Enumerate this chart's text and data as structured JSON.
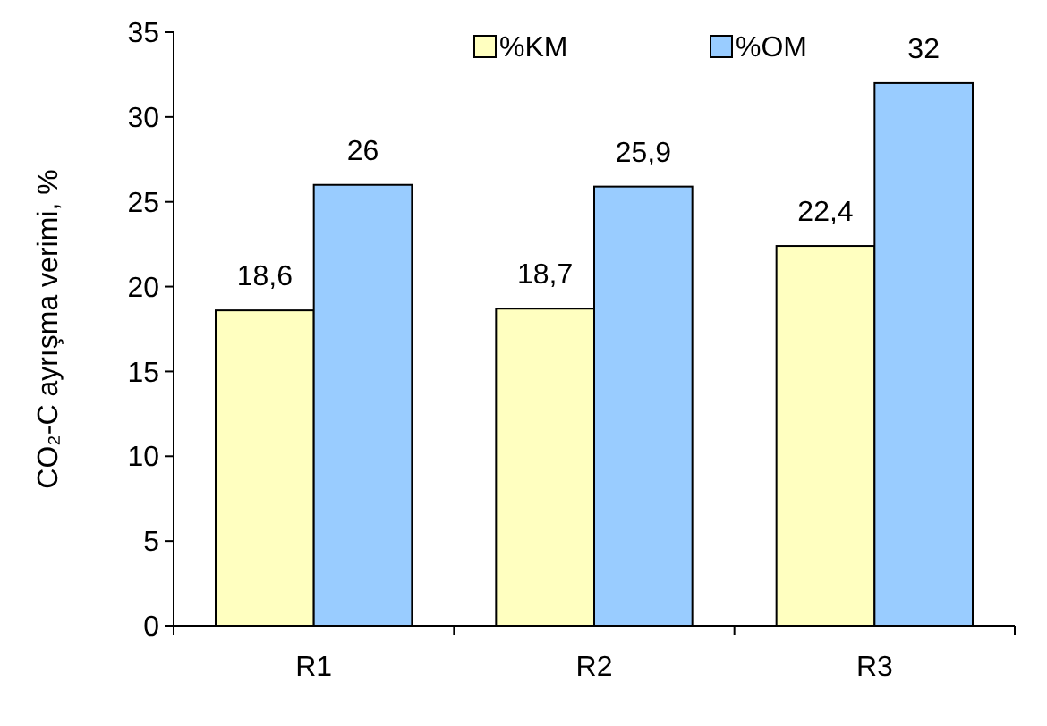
{
  "chart_data": {
    "type": "bar",
    "ylabel": "CO₂-C ayrışma verimi, %",
    "categories": [
      "R1",
      "R2",
      "R3"
    ],
    "series": [
      {
        "name": "%KM",
        "color": "#ffffc0",
        "values": [
          18.6,
          18.7,
          22.4
        ],
        "value_labels": [
          "18,6",
          "18,7",
          "22,4"
        ]
      },
      {
        "name": "%OM",
        "color": "#99ccff",
        "values": [
          26,
          25.9,
          32
        ],
        "value_labels": [
          "26",
          "25,9",
          "32"
        ]
      }
    ],
    "ylim": [
      0,
      35
    ],
    "yticks": [
      0,
      5,
      10,
      15,
      20,
      25,
      30,
      35
    ],
    "grid": false,
    "legend": "top"
  }
}
